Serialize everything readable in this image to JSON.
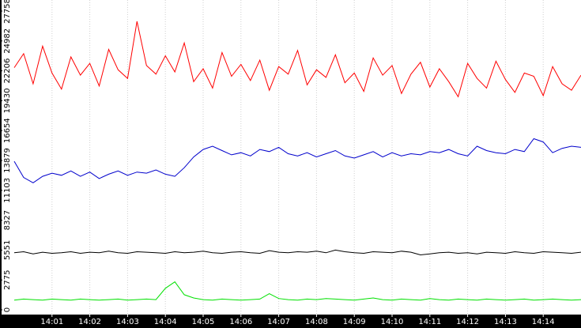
{
  "chart_data": {
    "type": "line",
    "x": [
      0,
      0.25,
      0.5,
      0.75,
      1,
      1.25,
      1.5,
      1.75,
      2,
      2.25,
      2.5,
      2.75,
      3,
      3.25,
      3.5,
      3.75,
      4,
      4.25,
      4.5,
      4.75,
      5,
      5.25,
      5.5,
      5.75,
      6,
      6.25,
      6.5,
      6.75,
      7,
      7.25,
      7.5,
      7.75,
      8,
      8.25,
      8.5,
      8.75,
      9,
      9.25,
      9.5,
      9.75,
      10,
      10.25,
      10.5,
      10.75,
      11,
      11.25,
      11.5,
      11.75,
      12,
      12.25,
      12.5,
      12.75,
      13,
      13.25,
      13.5,
      13.75,
      14,
      14.25,
      14.5,
      14.75,
      15
    ],
    "series": [
      {
        "color": "#ff0000",
        "values": [
          22500,
          23800,
          21000,
          24500,
          22000,
          20500,
          23500,
          21800,
          22900,
          20800,
          24200,
          22300,
          21500,
          26800,
          22700,
          21900,
          23600,
          22100,
          24800,
          21200,
          22400,
          20600,
          23900,
          21700,
          22800,
          21300,
          23200,
          20400,
          22600,
          21900,
          24100,
          20900,
          22300,
          21600,
          23700,
          21100,
          22000,
          20300,
          23400,
          21800,
          22700,
          20100,
          21900,
          23000,
          20700,
          22400,
          21200,
          19800,
          22900,
          21500,
          20600,
          23100,
          21400,
          20200,
          22000,
          21700,
          19900,
          22600,
          21000,
          20400,
          21800
        ]
      },
      {
        "color": "#0000cc",
        "values": [
          13800,
          12300,
          11800,
          12400,
          12700,
          12500,
          12900,
          12400,
          12800,
          12200,
          12600,
          12900,
          12500,
          12800,
          12700,
          13000,
          12600,
          12400,
          13200,
          14200,
          14900,
          15200,
          14800,
          14400,
          14600,
          14300,
          14900,
          14700,
          15100,
          14500,
          14300,
          14600,
          14200,
          14500,
          14800,
          14300,
          14100,
          14400,
          14700,
          14200,
          14600,
          14300,
          14500,
          14400,
          14700,
          14600,
          14900,
          14500,
          14300,
          15200,
          14800,
          14600,
          14500,
          14900,
          14700,
          15900,
          15600,
          14600,
          15000,
          15200,
          15100
        ]
      },
      {
        "color": "#000000",
        "values": [
          5300,
          5400,
          5200,
          5350,
          5250,
          5300,
          5400,
          5250,
          5350,
          5300,
          5450,
          5300,
          5250,
          5400,
          5350,
          5300,
          5250,
          5400,
          5300,
          5350,
          5450,
          5300,
          5250,
          5350,
          5400,
          5300,
          5250,
          5500,
          5350,
          5300,
          5400,
          5350,
          5450,
          5300,
          5550,
          5400,
          5300,
          5250,
          5400,
          5350,
          5300,
          5450,
          5350,
          5100,
          5200,
          5300,
          5350,
          5250,
          5300,
          5200,
          5350,
          5300,
          5250,
          5400,
          5300,
          5250,
          5400,
          5350,
          5300,
          5250,
          5350
        ]
      },
      {
        "color": "#00e000",
        "values": [
          900,
          1000,
          950,
          900,
          1000,
          950,
          900,
          1000,
          950,
          900,
          950,
          1000,
          900,
          950,
          1000,
          950,
          2000,
          2600,
          1400,
          1100,
          950,
          900,
          1000,
          950,
          900,
          950,
          1000,
          1500,
          1050,
          950,
          900,
          1000,
          950,
          1050,
          1000,
          950,
          900,
          1000,
          1100,
          950,
          900,
          1000,
          950,
          900,
          1050,
          950,
          900,
          1000,
          950,
          900,
          1000,
          950,
          900,
          950,
          1000,
          900,
          950,
          1000,
          950,
          900,
          950
        ]
      }
    ],
    "xlim": [
      0,
      15
    ],
    "xticks": [
      {
        "value": 1,
        "label": "14:01"
      },
      {
        "value": 2,
        "label": "14:02"
      },
      {
        "value": 3,
        "label": "14:03"
      },
      {
        "value": 4,
        "label": "14:04"
      },
      {
        "value": 5,
        "label": "14:05"
      },
      {
        "value": 6,
        "label": "14:06"
      },
      {
        "value": 7,
        "label": "14:07"
      },
      {
        "value": 8,
        "label": "14:08"
      },
      {
        "value": 9,
        "label": "14:09"
      },
      {
        "value": 10,
        "label": "14:10"
      },
      {
        "value": 11,
        "label": "14:11"
      },
      {
        "value": 12,
        "label": "14:12"
      },
      {
        "value": 13,
        "label": "14:13"
      },
      {
        "value": 14,
        "label": "14:14"
      }
    ],
    "ylim": [
      0,
      27758
    ],
    "yticks": [
      0,
      2775,
      5551,
      8327,
      11103,
      13879,
      16654,
      19430,
      22206,
      24982,
      27758
    ],
    "grid": true
  }
}
